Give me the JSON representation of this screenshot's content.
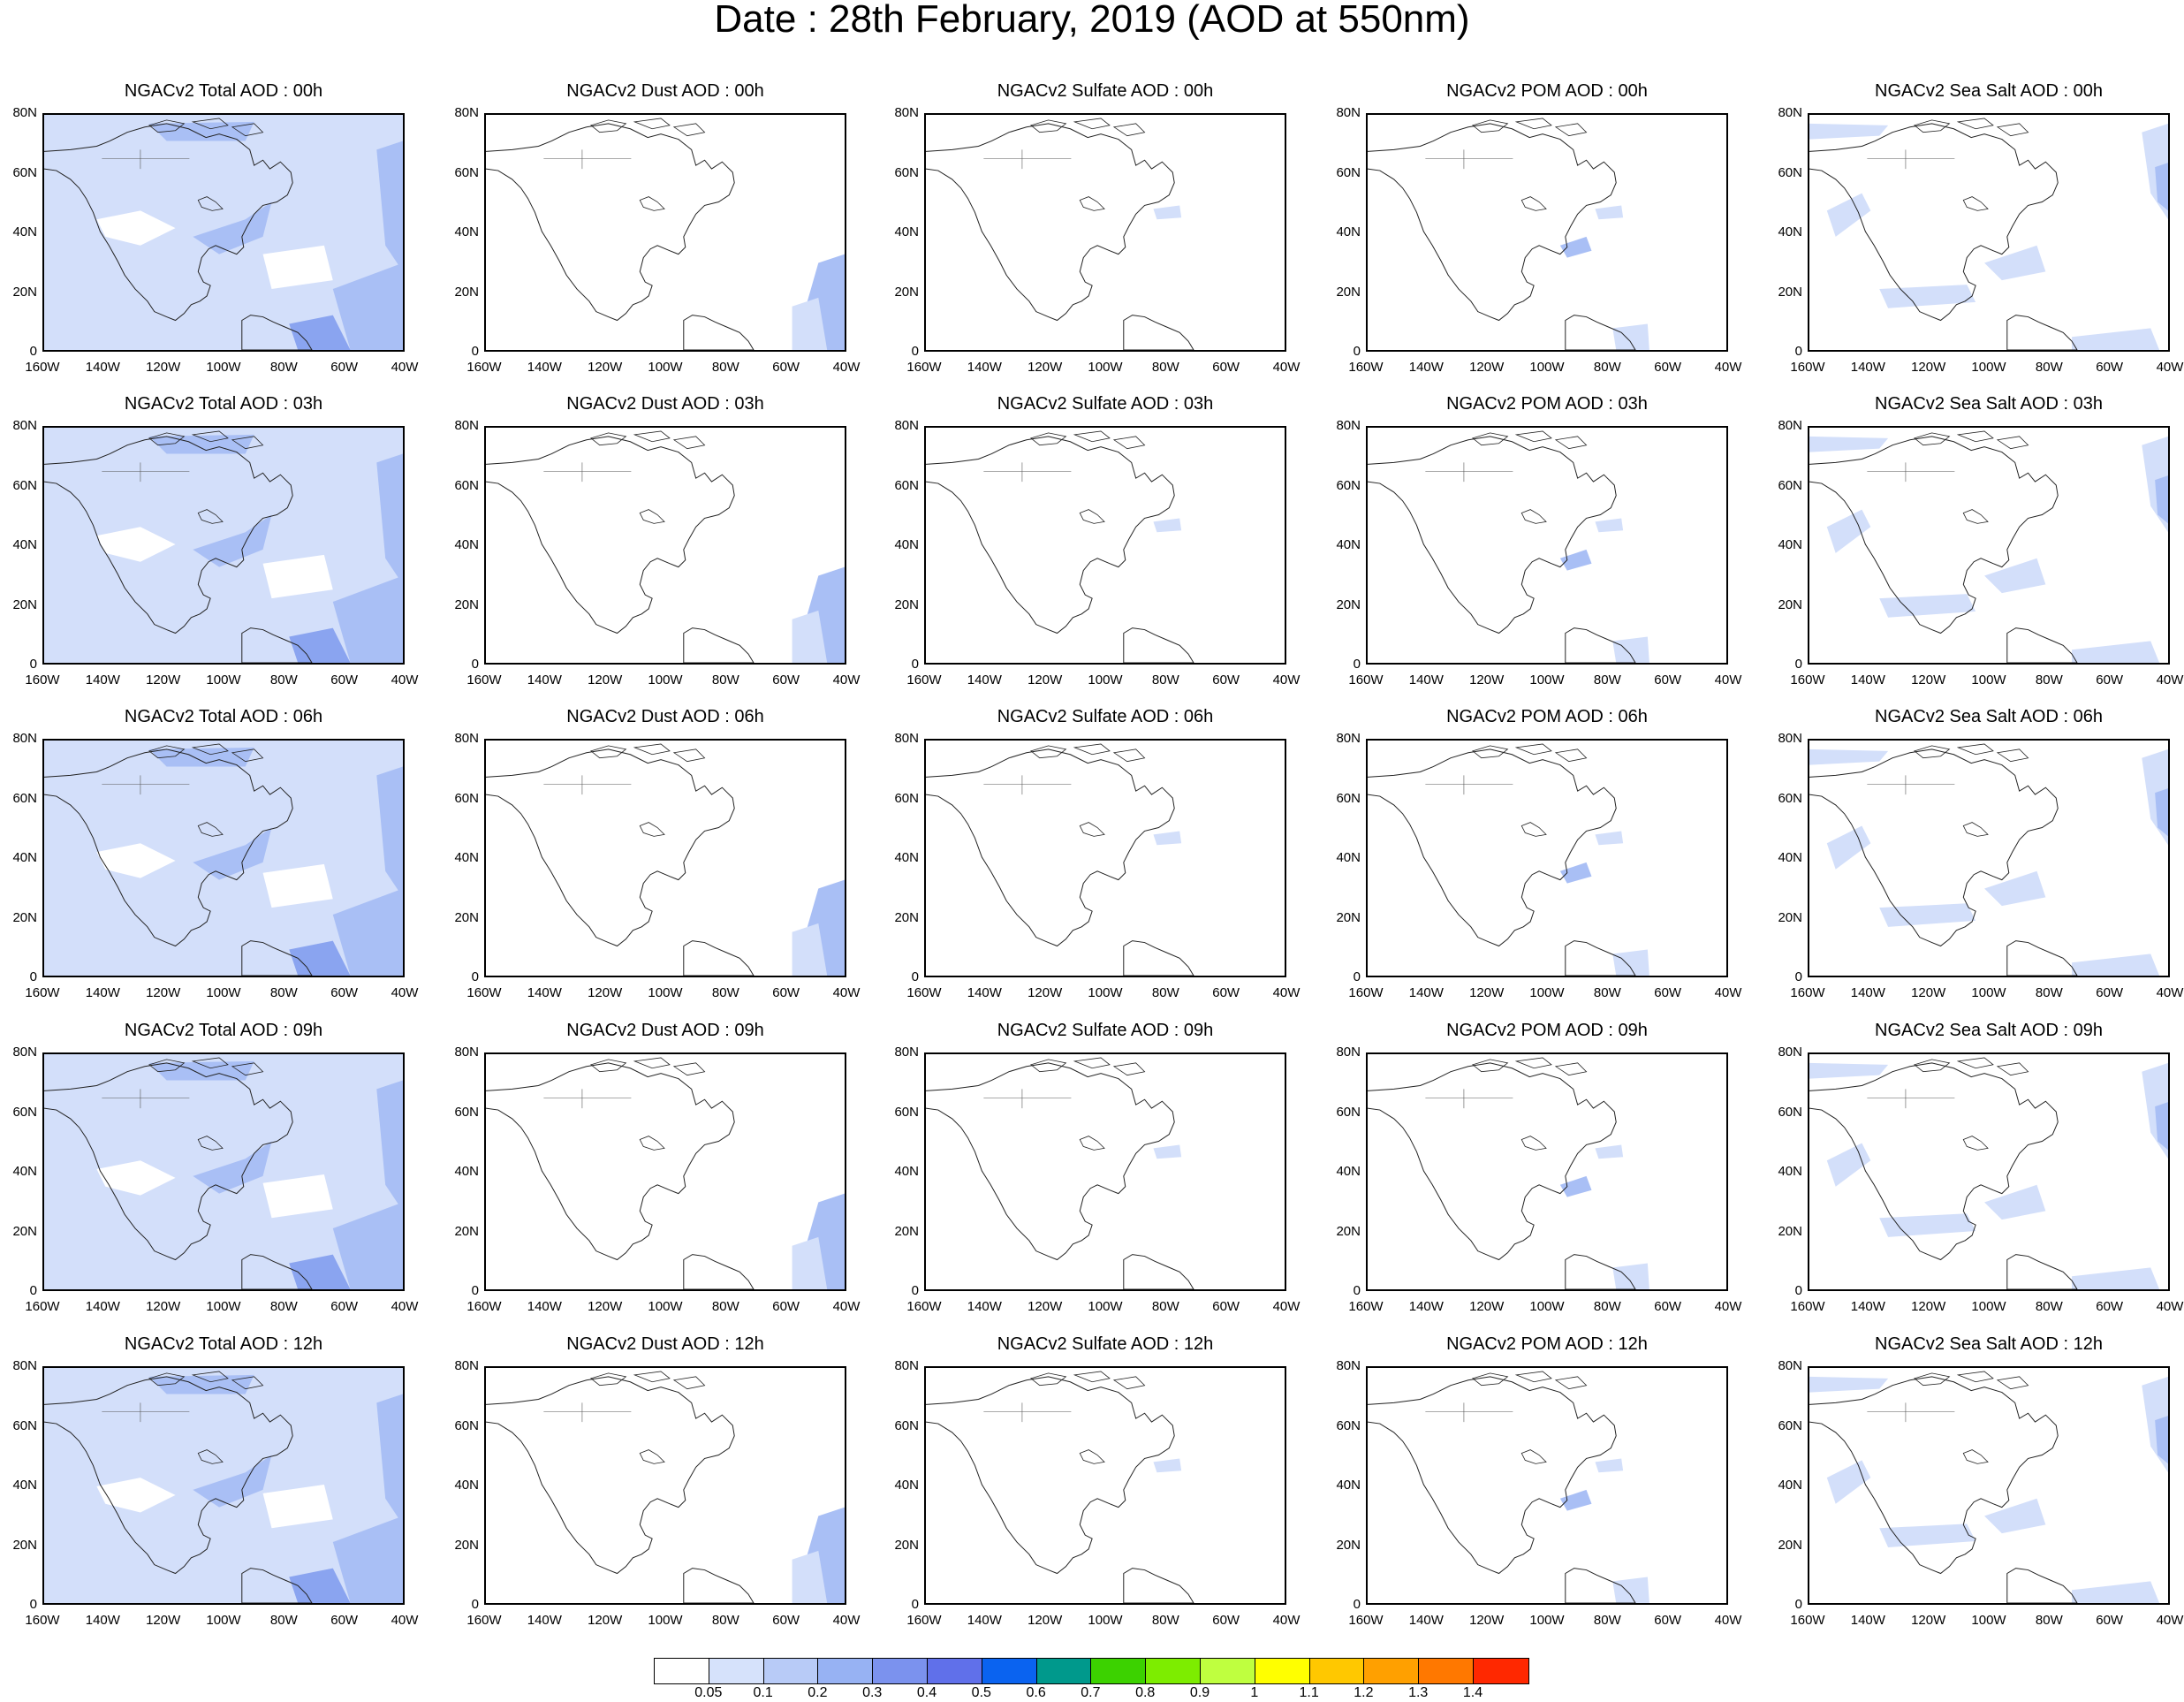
{
  "title": "Date : 28th February, 2019 (AOD at 550nm)",
  "lat_labels": [
    "80N",
    "60N",
    "40N",
    "20N",
    "0"
  ],
  "lon_labels": [
    "160W",
    "140W",
    "120W",
    "100W",
    "80W",
    "60W",
    "40W"
  ],
  "panels": [
    [
      "NGACv2 Total AOD : 00h",
      "NGACv2 Dust AOD : 00h",
      "NGACv2 Sulfate AOD : 00h",
      "NGACv2 POM AOD : 00h",
      "NGACv2 Sea Salt AOD : 00h"
    ],
    [
      "NGACv2 Total AOD : 03h",
      "NGACv2 Dust AOD : 03h",
      "NGACv2 Sulfate AOD : 03h",
      "NGACv2 POM AOD : 03h",
      "NGACv2 Sea Salt AOD : 03h"
    ],
    [
      "NGACv2 Total AOD : 06h",
      "NGACv2 Dust AOD : 06h",
      "NGACv2 Sulfate AOD : 06h",
      "NGACv2 POM AOD : 06h",
      "NGACv2 Sea Salt AOD : 06h"
    ],
    [
      "NGACv2 Total AOD : 09h",
      "NGACv2 Dust AOD : 09h",
      "NGACv2 Sulfate AOD : 09h",
      "NGACv2 POM AOD : 09h",
      "NGACv2 Sea Salt  AOD : 09h"
    ],
    [
      "NGACv2 Total AOD  : 12h",
      "NGACv2 Dust AOD : 12h",
      "NGACv2 Sulfate AOD : 12h",
      "NGACv2 POM  AOD : 12h",
      "NGACv2 Sea Salt  AOD : 12h"
    ]
  ],
  "colorbar": {
    "colors": [
      "#ffffff",
      "#d6e2fb",
      "#b8cbf7",
      "#97b2f3",
      "#7b92ee",
      "#6070ea",
      "#0a63f0",
      "#00998c",
      "#3cd200",
      "#7ded00",
      "#bfff3f",
      "#ffff00",
      "#ffc800",
      "#ffa000",
      "#ff7800",
      "#ff2800"
    ],
    "labels": [
      "0.05",
      "0.1",
      "0.2",
      "0.3",
      "0.4",
      "0.5",
      "0.6",
      "0.7",
      "0.8",
      "0.9",
      "1",
      "1.1",
      "1.2",
      "1.3",
      "1.4"
    ]
  }
}
